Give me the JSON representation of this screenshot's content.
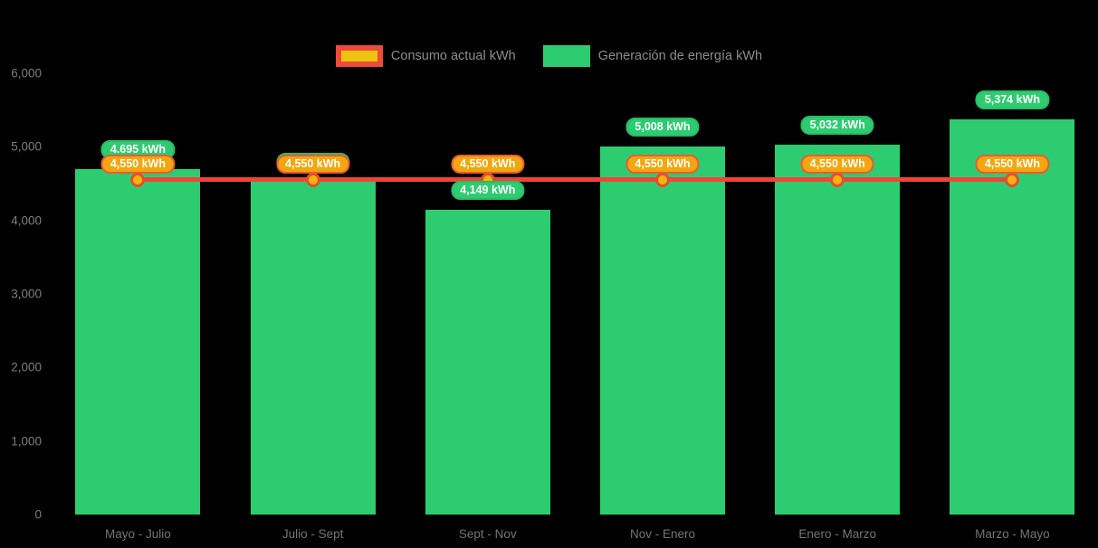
{
  "chart_data": {
    "type": "combo-bar-line",
    "title": "",
    "categories": [
      "Mayo - Julio",
      "Julio - Sept",
      "Sept - Nov",
      "Nov - Enero",
      "Enero - Marzo",
      "Marzo - Mayo"
    ],
    "series": [
      {
        "name": "Consumo actual kWh",
        "type": "line",
        "color": "#ee4537",
        "marker_fill": "#f4b40c",
        "marker_stroke": "#e1512e",
        "values": [
          4550,
          4550,
          4550,
          4550,
          4550,
          4550
        ],
        "data_labels": [
          "4,550 kWh",
          "4,550 kWh",
          "4,550 kWh",
          "4,550 kWh",
          "4,550 kWh",
          "4,550 kWh"
        ]
      },
      {
        "name": "Generación de energía kWh",
        "type": "bar",
        "color": "#2ecc71",
        "values": [
          4695,
          4550,
          4149,
          5008,
          5032,
          5374
        ],
        "data_labels": [
          "4.695 kWh",
          "4,550 kWh",
          "4,149 kWh",
          "5,008 kWh",
          "5,032 kWh",
          "5,374 kWh"
        ]
      }
    ],
    "ylim": [
      0,
      6000
    ],
    "yticks": {
      "values": [
        6000,
        5000,
        4000,
        3000,
        2000,
        1000,
        0
      ],
      "labels": [
        "6,000",
        "5,000",
        "4,000",
        "3,000",
        "2,000",
        "1,000",
        "0"
      ]
    },
    "legend_position": "top-center",
    "grid": false,
    "background": "#000000"
  }
}
